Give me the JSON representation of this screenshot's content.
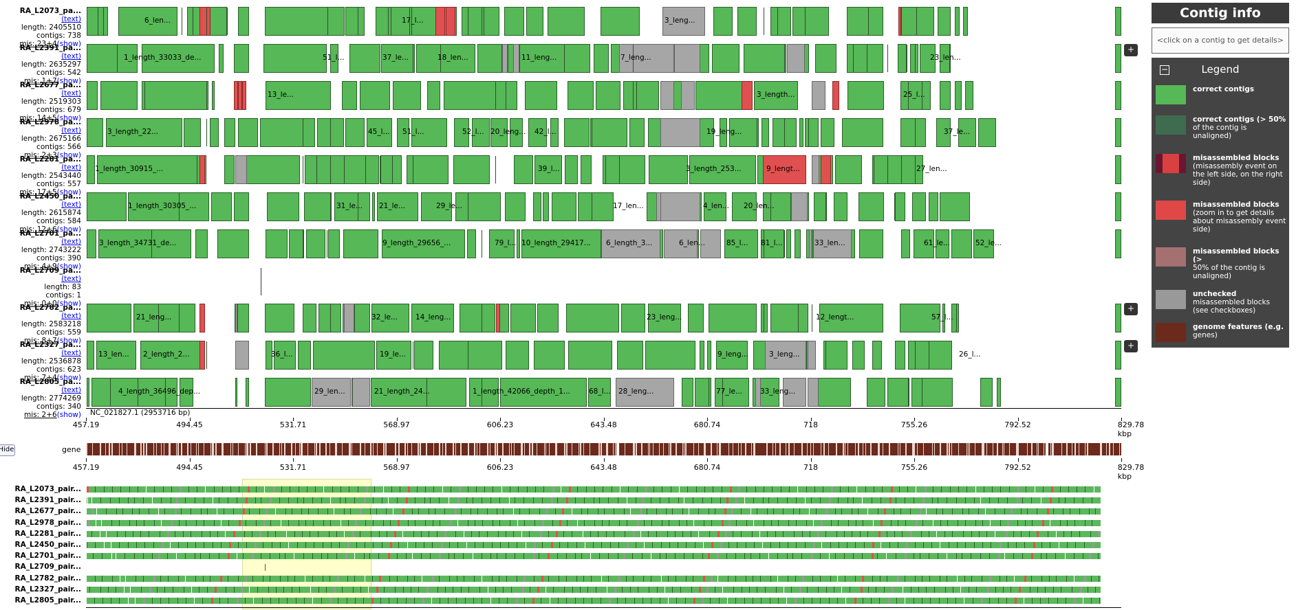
{
  "assemblies": [
    {
      "name": "RA_L2073_pa...",
      "link": "(text)",
      "length": "length: 2405510",
      "contigs": "contigs: 738",
      "mis": "mis: 23+4",
      "show": "(show)"
    },
    {
      "name": "RA_L2391_pa...",
      "link": "(text)",
      "length": "length: 2635297",
      "contigs": "contigs: 542",
      "mis": "mis: 1+7",
      "show": "(show)"
    },
    {
      "name": "RA_L2677_pa...",
      "link": "(text)",
      "length": "length: 2519303",
      "contigs": "contigs: 679",
      "mis": "mis: 14+5",
      "show": "(show)"
    },
    {
      "name": "RA_L2978_pa...",
      "link": "(text)",
      "length": "length: 2675166",
      "contigs": "contigs: 566",
      "mis": "mis: 2+3",
      "show": "(show)"
    },
    {
      "name": "RA_L2281_pa...",
      "link": "(text)",
      "length": "length: 2543440",
      "contigs": "contigs: 557",
      "mis": "mis: 17+5",
      "show": "(show)"
    },
    {
      "name": "RA_L2450_pa...",
      "link": "(text)",
      "length": "length: 2615874",
      "contigs": "contigs: 584",
      "mis": "mis: 12+6",
      "show": "(show)"
    },
    {
      "name": "RA_L2701_pa...",
      "link": "(text)",
      "length": "length: 2743222",
      "contigs": "contigs: 390",
      "mis": "mis: 4+9",
      "show": "(show)"
    },
    {
      "name": "RA_L2709_pa...",
      "link": "(text)",
      "length": "length: 83",
      "contigs": "contigs: 1",
      "mis": "mis: 0+0",
      "show": "(show)"
    },
    {
      "name": "RA_L2782_pa...",
      "link": "(text)",
      "length": "length: 2583218",
      "contigs": "contigs: 559",
      "mis": "mis: 8+7",
      "show": "(show)"
    },
    {
      "name": "RA_L2327_pa...",
      "link": "(text)",
      "length": "length: 2536878",
      "contigs": "contigs: 623",
      "mis": "mis: 7+4",
      "show": "(show)"
    },
    {
      "name": "RA_L2805_pa...",
      "link": "(text)",
      "length": "length: 2774269",
      "contigs": "contigs: 340",
      "mis": "mis: 2+6",
      "show": "(show)"
    }
  ],
  "contig_labels": [
    [
      "6_len...",
      "17_l...",
      "3_leng..."
    ],
    [
      "1_length_33033_de...",
      "51_l...",
      "37_le...",
      "18_len...",
      "11_leng...",
      "7_leng...",
      "23_len..."
    ],
    [
      "13_le...",
      "3_length...",
      "25_l..."
    ],
    [
      "3_length_22...",
      "45_l...",
      "51_l...",
      "52_l...",
      "20_leng...",
      "42_l...",
      "19_leng...",
      "37_le..."
    ],
    [
      "1_length_30915_...",
      "39_l...",
      "3_length_253...",
      "9_lengt...",
      "27_len..."
    ],
    [
      "1_length_30305_...",
      "31_le...",
      "21_le...",
      "29_le...",
      "17_len...",
      "4_len...",
      "20_len..."
    ],
    [
      "3_length_34731_de...",
      "9_length_29656_...",
      "79_l...",
      "10_length_29417...",
      "6_length_3...",
      "6_len...",
      "85_l...",
      "81_l...",
      "33_len...",
      "61_le...",
      "52_le..."
    ],
    [],
    [
      "21_leng...",
      "32_le...",
      "14_leng...",
      "23_leng...",
      "12_lengt...",
      "57_l..."
    ],
    [
      "13_len...",
      "2_length_2...",
      "36_l...",
      "19_le...",
      "9_leng...",
      "3_leng...",
      "26_l..."
    ],
    [
      "4_length_36496_dep...",
      "29_len...",
      "21_length_24...",
      "1_length_42066_depth_1...",
      "68_l...",
      "28_leng...",
      "77_le...",
      "33_leng..."
    ]
  ],
  "reference": {
    "name": "NC_021827.1 (2953716 bp)"
  },
  "axis_ticks": [
    "457.19",
    "494.45",
    "531.71",
    "568.97",
    "606.23",
    "643.48",
    "680.74",
    "718",
    "755.26",
    "792.52",
    "829.78 kbp"
  ],
  "gene_track": {
    "label": "gene",
    "hide_button": "Hide"
  },
  "overview_names": [
    "RA_L2073_pair...",
    "RA_L2391_pair...",
    "RA_L2677_pair...",
    "RA_L2978_pair...",
    "RA_L2281_pair...",
    "RA_L2450_pair...",
    "RA_L2701_pair...",
    "RA_L2709_pair...",
    "RA_L2782_pair...",
    "RA_L2327_pair...",
    "RA_L2805_pair..."
  ],
  "expand_button": "+",
  "panel": {
    "title": "Contig info",
    "placeholder": "<click on a contig to get details>",
    "legend_title": "Legend",
    "collapse": "−",
    "items": [
      {
        "bold": "correct contigs",
        "text": "",
        "color": "#56b856"
      },
      {
        "bold": "correct contigs (> 50%",
        "text": "of the contig is unaligned)",
        "color": "#3f6b4e"
      },
      {
        "bold": "misassembled blocks",
        "text": "(misassembly event on the left side, on the right side)",
        "color": "#d94040"
      },
      {
        "bold": "misassembled blocks",
        "text": "(zoom in to get details about misassembly event side)",
        "color": "#e04848"
      },
      {
        "bold": "misassembled blocks (>",
        "text": "50% of the contig is unaligned)",
        "color": "#a57070"
      },
      {
        "bold": "unchecked",
        "text": "misassembled blocks (see checkboxes)",
        "color": "#999999"
      },
      {
        "bold": "genome features (e.g.",
        "text": "genes)",
        "color": "#6b2a1c"
      }
    ]
  },
  "colors": {
    "green": "#56b856",
    "green_border": "#2b5e2b",
    "grey": "#a6a6a6",
    "red": "#e05050",
    "gene": "#6b2a1c",
    "highlight": "#ffffcc"
  }
}
